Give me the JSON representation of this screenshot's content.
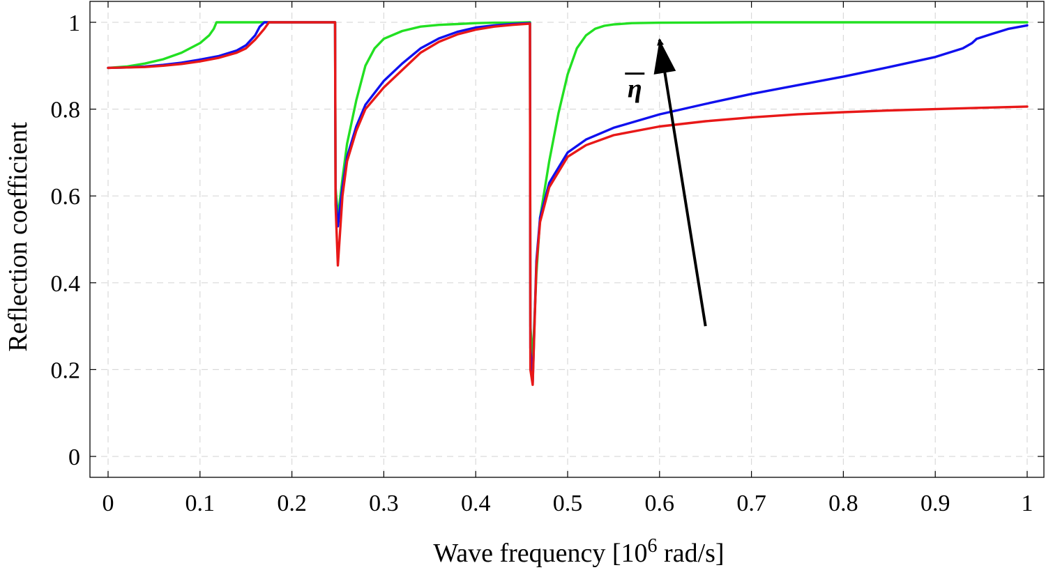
{
  "chart_data": {
    "type": "line",
    "title": "",
    "xlabel": "Wave frequency [10",
    "xlabel_sup": "6",
    "xlabel_tail": " rad/s]",
    "ylabel": "Reflection coefficient",
    "xlim": [
      0,
      1
    ],
    "ylim": [
      0,
      1
    ],
    "grid": true,
    "xticks": [
      0,
      0.1,
      0.2,
      0.3,
      0.4,
      0.5,
      0.6,
      0.7,
      0.8,
      0.9,
      1
    ],
    "xtick_labels": [
      "0",
      "0.1",
      "0.2",
      "0.3",
      "0.4",
      "0.5",
      "0.6",
      "0.7",
      "0.8",
      "0.9",
      "1"
    ],
    "yticks": [
      0,
      0.2,
      0.4,
      0.6,
      0.8,
      1
    ],
    "ytick_labels": [
      "0",
      "0.2",
      "0.4",
      "0.6",
      "0.8",
      "1"
    ],
    "annotation": {
      "text": "η",
      "arrow_from": [
        0.65,
        0.3
      ],
      "arrow_to": [
        0.6,
        0.96
      ],
      "label_at": [
        0.57,
        0.84
      ]
    },
    "series": [
      {
        "name": "green",
        "color": "#22e022",
        "x": [
          0,
          0.02,
          0.04,
          0.06,
          0.08,
          0.1,
          0.11,
          0.115,
          0.118,
          0.2,
          0.247,
          0.2475,
          0.25,
          0.255,
          0.26,
          0.27,
          0.28,
          0.29,
          0.3,
          0.32,
          0.34,
          0.36,
          0.38,
          0.4,
          0.42,
          0.44,
          0.459,
          0.4595,
          0.462,
          0.466,
          0.47,
          0.48,
          0.49,
          0.5,
          0.51,
          0.52,
          0.53,
          0.54,
          0.55,
          0.57,
          0.6,
          0.7,
          0.8,
          0.9,
          1
        ],
        "y": [
          0.895,
          0.898,
          0.905,
          0.915,
          0.93,
          0.952,
          0.97,
          0.985,
          1.0,
          1.0,
          1.0,
          0.62,
          0.55,
          0.64,
          0.72,
          0.82,
          0.9,
          0.94,
          0.962,
          0.98,
          0.99,
          0.994,
          0.996,
          0.998,
          0.999,
          0.999,
          1.0,
          0.3,
          0.22,
          0.42,
          0.55,
          0.68,
          0.79,
          0.88,
          0.94,
          0.97,
          0.985,
          0.992,
          0.995,
          0.998,
          0.999,
          1.0,
          1.0,
          1.0,
          1.0
        ]
      },
      {
        "name": "blue",
        "color": "#1010ee",
        "x": [
          0,
          0.02,
          0.04,
          0.06,
          0.08,
          0.1,
          0.12,
          0.14,
          0.15,
          0.16,
          0.165,
          0.17,
          0.2,
          0.247,
          0.2475,
          0.25,
          0.255,
          0.26,
          0.27,
          0.28,
          0.3,
          0.32,
          0.34,
          0.36,
          0.38,
          0.4,
          0.42,
          0.44,
          0.459,
          0.4595,
          0.462,
          0.466,
          0.47,
          0.48,
          0.5,
          0.52,
          0.55,
          0.6,
          0.65,
          0.7,
          0.75,
          0.8,
          0.85,
          0.9,
          0.93,
          0.94,
          0.945,
          0.96,
          0.98,
          1
        ],
        "y": [
          0.895,
          0.896,
          0.898,
          0.902,
          0.907,
          0.914,
          0.922,
          0.935,
          0.947,
          0.97,
          0.99,
          1.0,
          1.0,
          1.0,
          0.6,
          0.53,
          0.62,
          0.69,
          0.76,
          0.81,
          0.865,
          0.905,
          0.94,
          0.963,
          0.978,
          0.988,
          0.993,
          0.996,
          0.998,
          0.25,
          0.17,
          0.45,
          0.55,
          0.63,
          0.7,
          0.73,
          0.757,
          0.788,
          0.812,
          0.835,
          0.855,
          0.875,
          0.897,
          0.92,
          0.94,
          0.952,
          0.962,
          0.972,
          0.985,
          0.993
        ]
      },
      {
        "name": "red",
        "color": "#e81818",
        "x": [
          0,
          0.02,
          0.04,
          0.06,
          0.08,
          0.1,
          0.12,
          0.14,
          0.15,
          0.16,
          0.17,
          0.175,
          0.2,
          0.247,
          0.2475,
          0.25,
          0.255,
          0.26,
          0.27,
          0.28,
          0.3,
          0.32,
          0.34,
          0.36,
          0.38,
          0.4,
          0.42,
          0.44,
          0.459,
          0.4595,
          0.462,
          0.466,
          0.47,
          0.48,
          0.5,
          0.52,
          0.55,
          0.6,
          0.65,
          0.7,
          0.75,
          0.8,
          0.85,
          0.9,
          0.95,
          1
        ],
        "y": [
          0.895,
          0.896,
          0.897,
          0.9,
          0.904,
          0.91,
          0.918,
          0.93,
          0.94,
          0.96,
          0.985,
          1.0,
          1.0,
          1.0,
          0.58,
          0.44,
          0.6,
          0.68,
          0.75,
          0.8,
          0.85,
          0.89,
          0.93,
          0.955,
          0.972,
          0.983,
          0.99,
          0.994,
          0.997,
          0.2,
          0.165,
          0.44,
          0.54,
          0.62,
          0.69,
          0.717,
          0.74,
          0.76,
          0.772,
          0.781,
          0.788,
          0.793,
          0.797,
          0.8,
          0.803,
          0.806
        ]
      }
    ]
  }
}
